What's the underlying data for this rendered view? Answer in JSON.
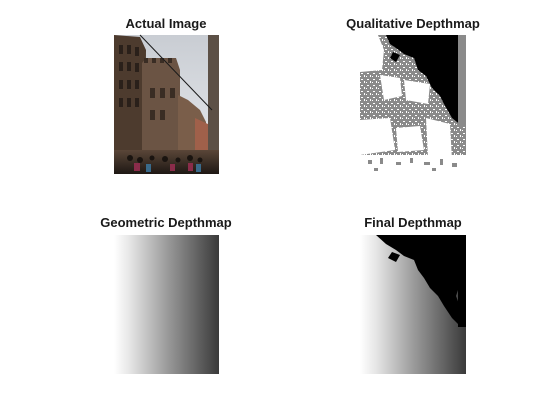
{
  "figure": {
    "panels": [
      {
        "title": "Actual Image"
      },
      {
        "title": "Qualitative Depthmap"
      },
      {
        "title": "Geometric Depthmap"
      },
      {
        "title": "Final Depthmap"
      }
    ]
  },
  "colors": {
    "background": "#ffffff",
    "title": "#1a1a1a",
    "qual_gray": "#8a8a8a",
    "black": "#000000",
    "sky": "#d9dce0",
    "building_dark": "#3e2f24",
    "building_mid": "#6b5444"
  },
  "icons": {
    "photo": "street-photo-image",
    "qualitative": "binary-segmentation-map",
    "geometric": "horizontal-gradient-map",
    "final": "combined-depth-map"
  }
}
